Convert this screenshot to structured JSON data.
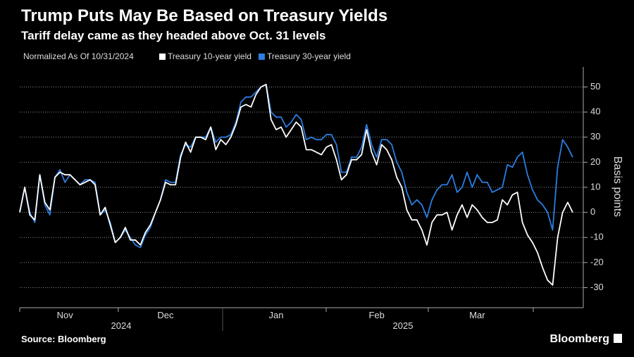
{
  "chart_data": {
    "type": "line",
    "title": "Trump Puts May Be Based on Treasury Yields",
    "subtitle": "Tariff delay came as they headed above Oct. 31 levels",
    "note": "Normalized As Of 10/31/2024",
    "y_label": "Basis points",
    "source": "Source: Bloomberg",
    "brand": "Bloomberg",
    "x_groups": [
      "2024",
      "2025"
    ],
    "categories": [
      null,
      null,
      null,
      null,
      null,
      null,
      null,
      null,
      null,
      "Nov",
      null,
      null,
      null,
      null,
      null,
      null,
      null,
      null,
      null,
      null,
      null,
      null,
      null,
      null,
      null,
      null,
      null,
      null,
      null,
      "Dec",
      null,
      null,
      null,
      null,
      null,
      null,
      null,
      null,
      null,
      null,
      null,
      null,
      null,
      null,
      null,
      null,
      null,
      null,
      null,
      null,
      null,
      "Jan",
      null,
      null,
      null,
      null,
      null,
      null,
      null,
      null,
      null,
      null,
      null,
      null,
      null,
      null,
      null,
      null,
      null,
      null,
      null,
      "Feb",
      null,
      null,
      null,
      null,
      null,
      null,
      null,
      null,
      null,
      null,
      null,
      null,
      null,
      null,
      null,
      null,
      null,
      null,
      null,
      "Mar",
      null,
      null,
      null,
      null,
      null,
      null,
      null,
      null,
      null,
      null,
      null,
      null,
      null,
      null,
      null,
      null,
      null,
      null,
      null
    ],
    "series": [
      {
        "name": "Treasury 10-year yield",
        "color": "#ffffff",
        "values": [
          0,
          10,
          -1,
          -3,
          15,
          4,
          1,
          14,
          16,
          15,
          15,
          13,
          11,
          12,
          13,
          11,
          -1,
          2,
          -5,
          -12,
          -10,
          -6,
          -11,
          -11,
          -13,
          -8,
          -5,
          0,
          5,
          12,
          11,
          11,
          22,
          28,
          24,
          30,
          30,
          29,
          34,
          25,
          29,
          27,
          30,
          35,
          42,
          43,
          42,
          47,
          50,
          51,
          37,
          33,
          34,
          30,
          33,
          36,
          34,
          25,
          25,
          24,
          23,
          26,
          27,
          21,
          13,
          15,
          21,
          21,
          23,
          33,
          24,
          19,
          27,
          25,
          21,
          14,
          10,
          1,
          -3,
          -3,
          -7,
          -13,
          -4,
          -1,
          -1,
          0,
          -7,
          -1,
          3,
          -2,
          3,
          1,
          -2,
          -4,
          -4,
          -3,
          5,
          3,
          7,
          8,
          -4,
          -9,
          -12,
          -16,
          -22,
          -27,
          -29,
          -10,
          0,
          4,
          0
        ]
      },
      {
        "name": "Treasury 30-year yield",
        "color": "#2b7de0",
        "values": [
          0,
          10,
          0,
          -4,
          15,
          3,
          -1,
          14,
          17,
          12,
          15,
          13,
          11,
          13,
          13,
          12,
          -1,
          1,
          -4,
          -12,
          -10,
          -7,
          -10,
          -13,
          -14,
          -9,
          -6,
          0,
          5,
          13,
          12,
          12,
          23,
          27,
          26,
          30,
          30,
          30,
          34,
          28,
          30,
          30,
          31,
          36,
          44,
          46,
          46,
          48,
          50,
          51,
          40,
          38,
          38,
          34,
          36,
          39,
          37,
          29,
          30,
          29,
          29,
          31,
          31,
          27,
          16,
          16,
          22,
          22,
          26,
          35,
          27,
          22,
          29,
          29,
          27,
          20,
          16,
          8,
          3,
          5,
          3,
          -2,
          5,
          9,
          11,
          11,
          15,
          8,
          10,
          16,
          10,
          15,
          12,
          12,
          8,
          9,
          10,
          19,
          18,
          22,
          24,
          15,
          9,
          5,
          3,
          0,
          -7,
          18,
          29,
          26,
          22
        ]
      }
    ],
    "ylim": [
      -38,
      58
    ],
    "yticks": [
      -30,
      -20,
      -10,
      0,
      10,
      20,
      30,
      40,
      50
    ],
    "grid": true
  }
}
